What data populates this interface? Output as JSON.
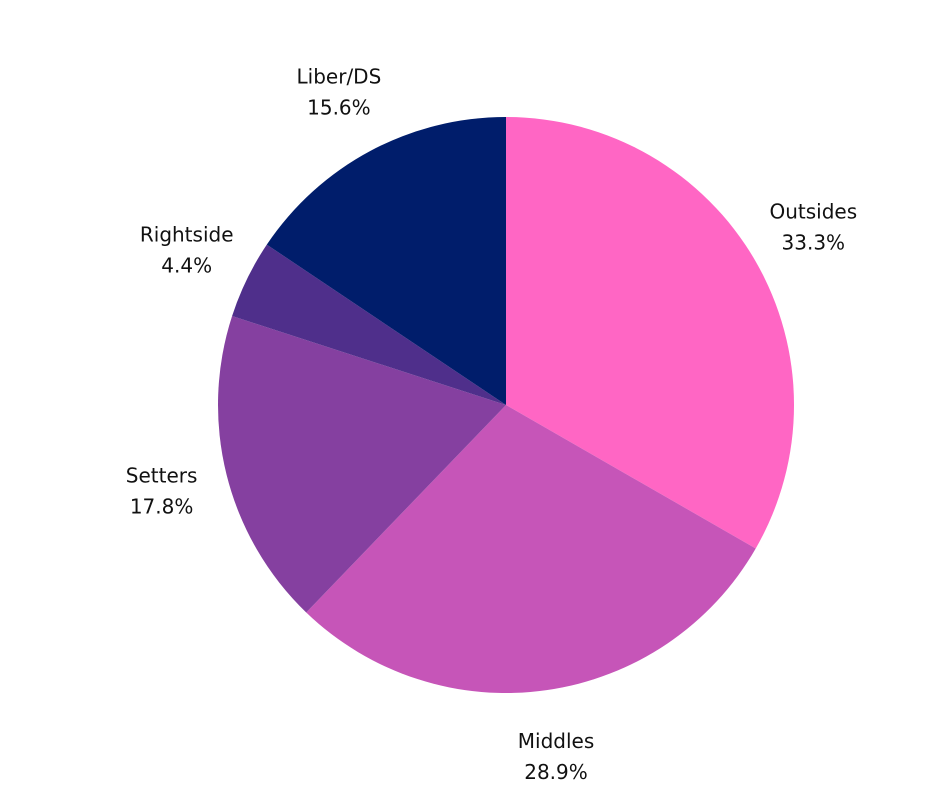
{
  "chart_data": {
    "type": "pie",
    "title": "",
    "slices": [
      {
        "label": "Outsides",
        "value": 33.3,
        "value_label": "33.3%",
        "color": "#ff66c4"
      },
      {
        "label": "Middles",
        "value": 28.9,
        "value_label": "28.9%",
        "color": "#c655b8"
      },
      {
        "label": "Setters",
        "value": 17.8,
        "value_label": "17.8%",
        "color": "#8540a0"
      },
      {
        "label": "Rightside",
        "value": 4.4,
        "value_label": "4.4%",
        "color": "#4f2f8b"
      },
      {
        "label": "Liber/DS",
        "value": 15.6,
        "value_label": "15.6%",
        "color": "#001d6b"
      }
    ],
    "start_angle": "12 o'clock",
    "direction": "clockwise",
    "legend": "none",
    "label_placement": "outside"
  }
}
